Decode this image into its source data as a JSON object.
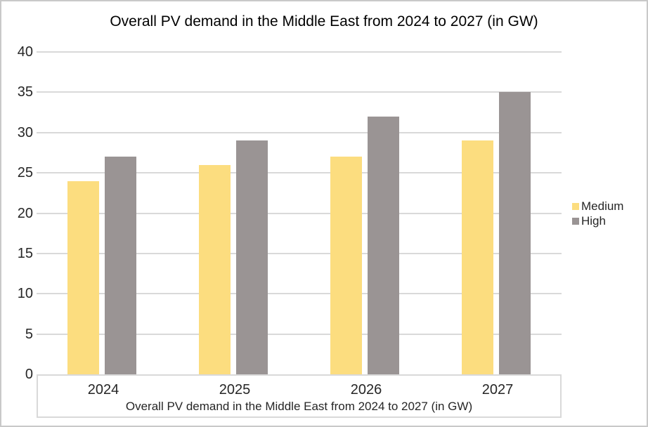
{
  "chart_data": {
    "type": "bar",
    "title": "Overall PV demand in the Middle East from 2024 to 2027 (in GW)",
    "xlabel": "Overall PV demand in the Middle East from 2024 to 2027 (in GW)",
    "ylabel": "",
    "categories": [
      "2024",
      "2025",
      "2026",
      "2027"
    ],
    "series": [
      {
        "name": "Medium",
        "color": "#FCDD7F",
        "values": [
          24,
          26,
          27,
          29
        ]
      },
      {
        "name": "High",
        "color": "#9A9494",
        "values": [
          27,
          29,
          32,
          35
        ]
      }
    ],
    "ylim": [
      0,
      40
    ],
    "yticks": [
      0,
      5,
      10,
      15,
      20,
      25,
      30,
      35,
      40
    ],
    "grid": true,
    "legend": {
      "position": "right",
      "entries": [
        "Medium",
        "High"
      ]
    },
    "colors": {
      "gridline": "#D9D9D9",
      "axis_box_border": "#D9D9D9",
      "frame_border": "#C9C9C9",
      "title_text": "#000000",
      "label_text": "#262626"
    }
  }
}
